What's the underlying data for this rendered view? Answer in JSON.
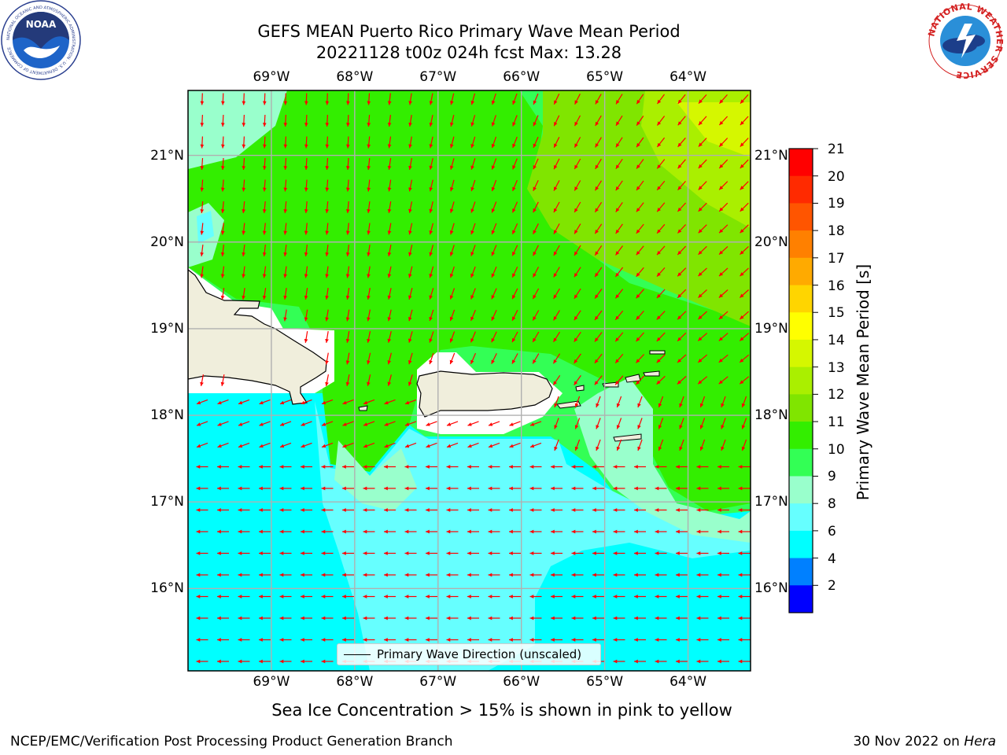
{
  "title": {
    "line1": "GEFS MEAN Puerto Rico Primary Wave Mean Period",
    "line2": "20221128 t00z 024h fcst   Max: 13.28"
  },
  "logos": {
    "noaa": {
      "text": "NOAA",
      "ring_text": "NATIONAL OCEANIC AND ATMOSPHERIC ADMINISTRATION · U.S. DEPARTMENT OF COMMERCE"
    },
    "nws": {
      "ring_text": "NATIONAL WEATHER SERVICE"
    }
  },
  "map": {
    "lon_range": [
      -70,
      -63.25
    ],
    "lat_range": [
      15.05,
      21.75
    ],
    "lon_ticks": [
      "69°W",
      "68°W",
      "67°W",
      "66°W",
      "65°W",
      "64°W"
    ],
    "lat_ticks": [
      "21°N",
      "20°N",
      "19°N",
      "18°N",
      "17°N",
      "16°N"
    ],
    "colors": {
      "land": "#f0eedc",
      "arrow": "#ff0000",
      "grid": "#b0b0b0"
    }
  },
  "legend": {
    "label": "Primary Wave Direction (unscaled)"
  },
  "colorbar": {
    "label": "Primary Wave Mean Period [s]",
    "ticks": [
      "21",
      "20",
      "19",
      "18",
      "17",
      "16",
      "15",
      "14",
      "13",
      "12",
      "11",
      "10",
      "9",
      "8",
      "6",
      "4",
      "2"
    ],
    "colors_top_to_bottom": [
      "#ff0000",
      "#ff2a00",
      "#ff5500",
      "#ff8000",
      "#ffaa00",
      "#ffd500",
      "#ffff00",
      "#d5f700",
      "#aaef00",
      "#80e500",
      "#33ee00",
      "#33ff55",
      "#99ffcc",
      "#66ffff",
      "#00ffff",
      "#0080ff",
      "#0000ff"
    ]
  },
  "sea_ice_note": "Sea Ice Concentration > 15% is shown in pink to yellow",
  "footer": {
    "left": "NCEP/EMC/Verification Post Processing Product Generation Branch",
    "right_prefix": "30 Nov 2022 on ",
    "right_host": "Hera"
  }
}
